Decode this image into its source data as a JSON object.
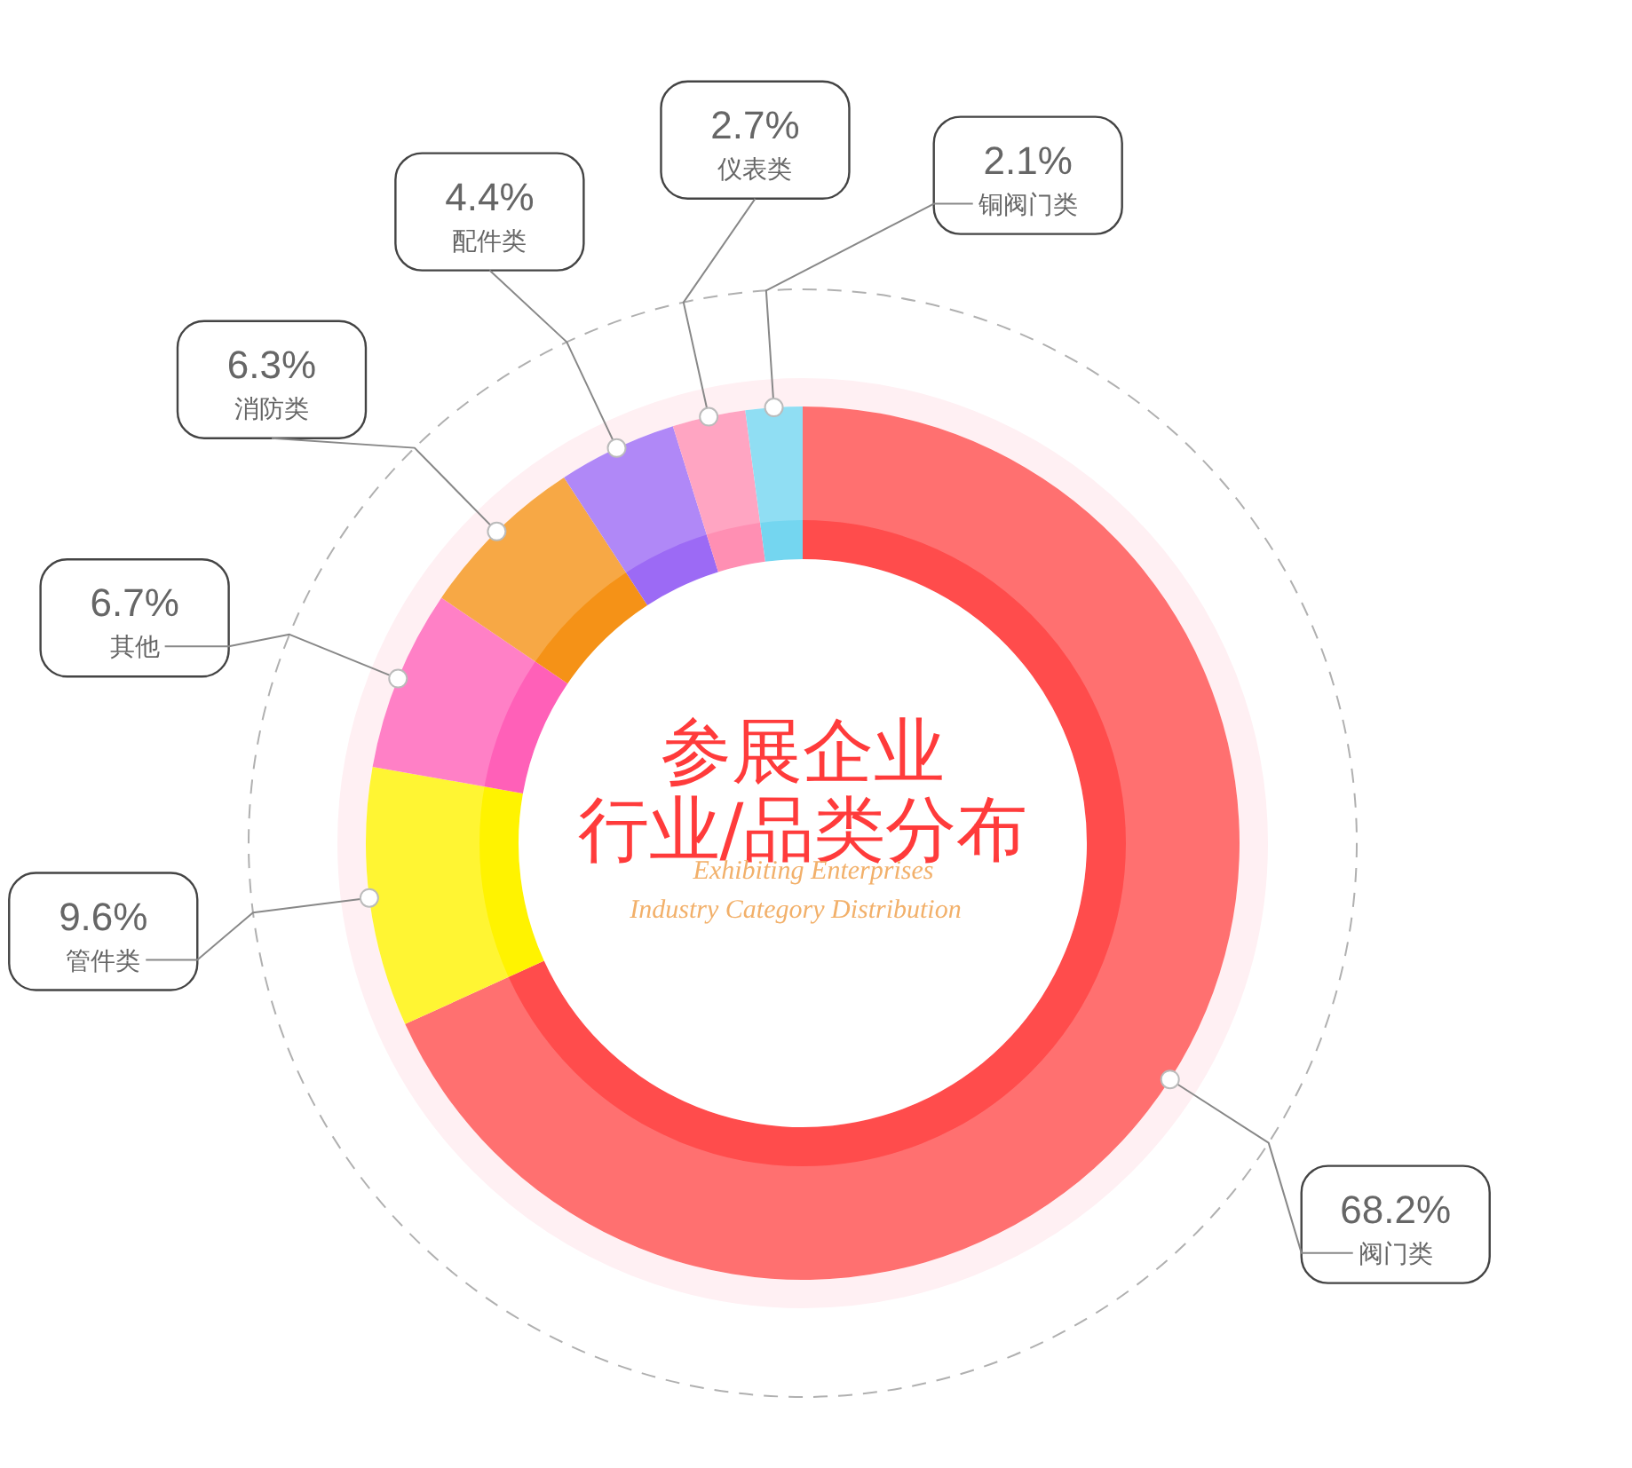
{
  "chart_data": {
    "type": "donut",
    "title": "参展企业",
    "subtitle": "行业/品类分布",
    "annotations": [
      "Exhibiting Enterprises\nIndustry Category Distribution"
    ],
    "categories": [
      "阀门类",
      "管件类",
      "其他",
      "消防类",
      "配件类",
      "仪表类",
      "铜阀门类"
    ],
    "values": [
      68.2,
      9.6,
      6.7,
      6.3,
      4.4,
      2.7,
      2.1
    ],
    "value_labels": [
      "68.2%",
      "9.6%",
      "6.7%",
      "6.3%",
      "4.4%",
      "2.7%",
      "2.1%"
    ],
    "colors": [
      "#ff7070",
      "#fff533",
      "#ff80c6",
      "#f7a845",
      "#b088f7",
      "#ffa5c2",
      "#90def3"
    ]
  }
}
